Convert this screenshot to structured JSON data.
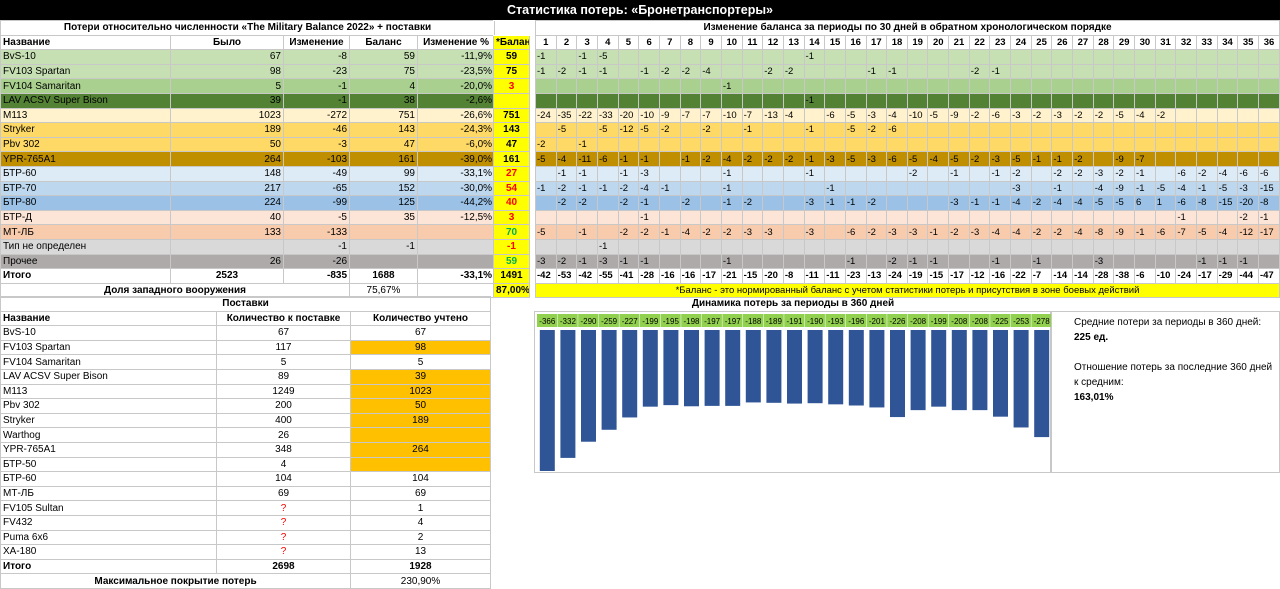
{
  "title": "Статистика потерь: «Бронетранспортеры»",
  "loss_table": {
    "section_title": "Потери относительно численности «The Military Balance 2022» + поставки",
    "headers": [
      "Название",
      "Было",
      "Изменение",
      "Баланс",
      "Изменение %"
    ],
    "rows": [
      {
        "name": "BvS-10",
        "was": "67",
        "change": "-8",
        "balance": "59",
        "pct": "-11,9%",
        "bal_norm": "59"
      },
      {
        "name": "FV103 Spartan",
        "was": "98",
        "change": "-23",
        "balance": "75",
        "pct": "-23,5%",
        "bal_norm": "75"
      },
      {
        "name": "FV104 Samaritan",
        "was": "5",
        "change": "-1",
        "balance": "4",
        "pct": "-20,0%",
        "bal_norm": "3"
      },
      {
        "name": "LAV ACSV Super Bison",
        "was": "39",
        "change": "-1",
        "balance": "38",
        "pct": "-2,6%",
        "bal_norm": ""
      },
      {
        "name": "M113",
        "was": "1023",
        "change": "-272",
        "balance": "751",
        "pct": "-26,6%",
        "bal_norm": "751"
      },
      {
        "name": "Stryker",
        "was": "189",
        "change": "-46",
        "balance": "143",
        "pct": "-24,3%",
        "bal_norm": "143"
      },
      {
        "name": "Pbv 302",
        "was": "50",
        "change": "-3",
        "balance": "47",
        "pct": "-6,0%",
        "bal_norm": "47"
      },
      {
        "name": "YPR-765A1",
        "was": "264",
        "change": "-103",
        "balance": "161",
        "pct": "-39,0%",
        "bal_norm": "161"
      },
      {
        "name": "БТР-60",
        "was": "148",
        "change": "-49",
        "balance": "99",
        "pct": "-33,1%",
        "bal_norm": "27"
      },
      {
        "name": "БТР-70",
        "was": "217",
        "change": "-65",
        "balance": "152",
        "pct": "-30,0%",
        "bal_norm": "54"
      },
      {
        "name": "БТР-80",
        "was": "224",
        "change": "-99",
        "balance": "125",
        "pct": "-44,2%",
        "bal_norm": "40"
      },
      {
        "name": "БТР-Д",
        "was": "40",
        "change": "-5",
        "balance": "35",
        "pct": "-12,5%",
        "bal_norm": "3"
      },
      {
        "name": "МТ-ЛБ",
        "was": "133",
        "change": "-133",
        "balance": "",
        "pct": "",
        "bal_norm": "70"
      },
      {
        "name": "Тип не определен",
        "was": "",
        "change": "-1",
        "balance": "-1",
        "pct": "",
        "bal_norm": "-1"
      },
      {
        "name": "Прочее",
        "was": "26",
        "change": "-26",
        "balance": "",
        "pct": "",
        "bal_norm": "59"
      },
      {
        "name": "Итого",
        "was": "2523",
        "change": "-835",
        "balance": "1688",
        "pct": "-33,1%",
        "bal_norm": "1491"
      }
    ],
    "western_label": "Доля западного вооружения",
    "western_value": "75,67%",
    "western_norm": "87,00%"
  },
  "balance_header": "*Баланс",
  "periods": {
    "title": "Изменение баланса за периоды по 30 дней в обратном хронологическом порядке",
    "columns": [
      "1",
      "2",
      "3",
      "4",
      "5",
      "6",
      "7",
      "8",
      "9",
      "10",
      "11",
      "12",
      "13",
      "14",
      "15",
      "16",
      "17",
      "18",
      "19",
      "20",
      "21",
      "22",
      "23",
      "24",
      "25",
      "26",
      "27",
      "28",
      "29",
      "30",
      "31",
      "32",
      "33",
      "34",
      "35",
      "36"
    ],
    "rows": [
      [
        "-1",
        "",
        "-1",
        "-5",
        "",
        "",
        "",
        "",
        "",
        "",
        "",
        "",
        "",
        "-1",
        "",
        "",
        "",
        "",
        "",
        "",
        "",
        "",
        "",
        "",
        "",
        "",
        "",
        "",
        "",
        "",
        "",
        "",
        "",
        "",
        "",
        ""
      ],
      [
        "-1",
        "-2",
        "-1",
        "-1",
        "",
        "-1",
        "-2",
        "-2",
        "-4",
        "",
        "",
        "-2",
        "-2",
        "",
        "",
        "",
        "-1",
        "-1",
        "",
        "",
        "",
        "-2",
        "-1",
        "",
        "",
        "",
        "",
        "",
        "",
        "",
        "",
        "",
        "",
        "",
        "",
        ""
      ],
      [
        "",
        "",
        "",
        "",
        "",
        "",
        "",
        "",
        "",
        "-1",
        "",
        "",
        "",
        "",
        "",
        "",
        "",
        "",
        "",
        "",
        "",
        "",
        "",
        "",
        "",
        "",
        "",
        "",
        "",
        "",
        "",
        "",
        "",
        "",
        "",
        ""
      ],
      [
        "",
        "",
        "",
        "",
        "",
        "",
        "",
        "",
        "",
        "",
        "",
        "",
        "",
        "-1",
        "",
        "",
        "",
        "",
        "",
        "",
        "",
        "",
        "",
        "",
        "",
        "",
        "",
        "",
        "",
        "",
        "",
        "",
        "",
        "",
        "",
        ""
      ],
      [
        "-24",
        "-35",
        "-22",
        "-33",
        "-20",
        "-10",
        "-9",
        "-7",
        "-7",
        "-10",
        "-7",
        "-13",
        "-4",
        "",
        "-6",
        "-5",
        "-3",
        "-4",
        "-10",
        "-5",
        "-9",
        "-2",
        "-6",
        "-3",
        "-2",
        "-3",
        "-2",
        "-2",
        "-5",
        "-4",
        "-2",
        "",
        "",
        "",
        "",
        ""
      ],
      [
        "",
        "-5",
        "",
        "-5",
        "-12",
        "-5",
        "-2",
        "",
        "-2",
        "",
        "-1",
        "",
        "",
        "-1",
        "",
        "-5",
        "-2",
        "-6",
        "",
        "",
        "",
        "",
        "",
        "",
        "",
        "",
        "",
        "",
        "",
        "",
        "",
        "",
        "",
        "",
        "",
        ""
      ],
      [
        "-2",
        "",
        "-1",
        "",
        "",
        "",
        "",
        "",
        "",
        "",
        "",
        "",
        "",
        "",
        "",
        "",
        "",
        "",
        "",
        "",
        "",
        "",
        "",
        "",
        "",
        "",
        "",
        "",
        "",
        "",
        "",
        "",
        "",
        "",
        "",
        ""
      ],
      [
        "-5",
        "-4",
        "-11",
        "-6",
        "-1",
        "-1",
        "",
        "-1",
        "-2",
        "-4",
        "-2",
        "-2",
        "-2",
        "-1",
        "-3",
        "-5",
        "-3",
        "-6",
        "-5",
        "-4",
        "-5",
        "-2",
        "-3",
        "-5",
        "-1",
        "-1",
        "-2",
        "",
        "-9",
        "-7",
        "",
        "",
        "",
        "",
        "",
        ""
      ],
      [
        "",
        "-1",
        "-1",
        "",
        "-1",
        "-3",
        "",
        "",
        "",
        "-1",
        "",
        "",
        "",
        "-1",
        "",
        "",
        "",
        "",
        "-2",
        "",
        "-1",
        "",
        "-1",
        "-2",
        "",
        "-2",
        "-2",
        "-3",
        "-2",
        "-1",
        "",
        "-6",
        "-2",
        "-4",
        "-6",
        "-6"
      ],
      [
        "-1",
        "-2",
        "-1",
        "-1",
        "-2",
        "-4",
        "-1",
        "",
        "",
        "-1",
        "",
        "",
        "",
        "",
        "-1",
        "",
        "",
        "",
        "",
        "",
        "",
        "",
        "",
        "-3",
        "",
        "-1",
        "",
        "-4",
        "-9",
        "-1",
        "-5",
        "-4",
        "-1",
        "-5",
        "-3",
        "-15"
      ],
      [
        "",
        "-2",
        "-2",
        "",
        "-2",
        "-1",
        "",
        "-2",
        "",
        "-1",
        "-2",
        "",
        "",
        "-3",
        "-1",
        "-1",
        "-2",
        "",
        "",
        "",
        "-3",
        "-1",
        "-1",
        "-4",
        "-2",
        "-4",
        "-4",
        "-5",
        "-5",
        "6",
        "1",
        "-6",
        "-8",
        "-15",
        "-20",
        "-8"
      ],
      [
        "",
        "",
        "",
        "",
        "",
        "-1",
        "",
        "",
        "",
        "",
        "",
        "",
        "",
        "",
        "",
        "",
        "",
        "",
        "",
        "",
        "",
        "",
        "",
        "",
        "",
        "",
        "",
        "",
        "",
        "",
        "",
        "-1",
        "",
        "",
        "-2",
        "-1"
      ],
      [
        "-5",
        "",
        "-1",
        "",
        "-2",
        "-2",
        "-1",
        "-4",
        "-2",
        "-2",
        "-3",
        "-3",
        "",
        "-3",
        "",
        "-6",
        "-2",
        "-3",
        "-3",
        "-1",
        "-2",
        "-3",
        "-4",
        "-4",
        "-2",
        "-2",
        "-4",
        "-8",
        "-9",
        "-1",
        "-6",
        "-7",
        "-5",
        "-4",
        "-12",
        "-17"
      ],
      [
        "",
        "",
        "",
        "-1",
        "",
        "",
        "",
        "",
        "",
        "",
        "",
        "",
        "",
        "",
        "",
        "",
        "",
        "",
        "",
        "",
        "",
        "",
        "",
        "",
        "",
        "",
        "",
        "",
        "",
        "",
        "",
        "",
        "",
        "",
        "",
        ""
      ],
      [
        "-3",
        "-2",
        "-1",
        "-3",
        "-1",
        "-1",
        "",
        "",
        "",
        "-1",
        "",
        "",
        "",
        "",
        "",
        "-1",
        "",
        "-2",
        "-1",
        "-1",
        "",
        "",
        "-1",
        "",
        "-1",
        "",
        "",
        "-3",
        "",
        "",
        "",
        "",
        "-1",
        "-1",
        "-1",
        ""
      ],
      [
        "-42",
        "-53",
        "-42",
        "-55",
        "-41",
        "-28",
        "-16",
        "-16",
        "-17",
        "-21",
        "-15",
        "-20",
        "-8",
        "-11",
        "-11",
        "-23",
        "-13",
        "-24",
        "-19",
        "-15",
        "-17",
        "-12",
        "-16",
        "-22",
        "-7",
        "-14",
        "-14",
        "-28",
        "-38",
        "-6",
        "-10",
        "-24",
        "-17",
        "-29",
        "-44",
        "-47"
      ]
    ],
    "footnote": "*Баланс - это нормированный баланс с учетом статистики потерь и присутствия в зоне боевых действий"
  },
  "supply_table": {
    "section_title": "Поставки",
    "headers": [
      "Название",
      "Количество к поставке",
      "Количество учтено"
    ],
    "rows": [
      {
        "name": "BvS-10",
        "qty": "67",
        "counted": "67"
      },
      {
        "name": "FV103 Spartan",
        "qty": "117",
        "counted": "98"
      },
      {
        "name": "FV104 Samaritan",
        "qty": "5",
        "counted": "5"
      },
      {
        "name": "LAV ACSV Super Bison",
        "qty": "89",
        "counted": "39"
      },
      {
        "name": "M113",
        "qty": "1249",
        "counted": "1023"
      },
      {
        "name": "Pbv 302",
        "qty": "200",
        "counted": "50"
      },
      {
        "name": "Stryker",
        "qty": "400",
        "counted": "189"
      },
      {
        "name": "Warthog",
        "qty": "26",
        "counted": ""
      },
      {
        "name": "YPR-765A1",
        "qty": "348",
        "counted": "264"
      },
      {
        "name": "БТР-50",
        "qty": "4",
        "counted": ""
      },
      {
        "name": "БТР-60",
        "qty": "104",
        "counted": "104"
      },
      {
        "name": "МТ-ЛБ",
        "qty": "69",
        "counted": "69"
      },
      {
        "name": "FV105 Sultan",
        "qty": "?",
        "counted": "1"
      },
      {
        "name": "FV432",
        "qty": "?",
        "counted": "4"
      },
      {
        "name": "Puma 6x6",
        "qty": "?",
        "counted": "2"
      },
      {
        "name": "XA-180",
        "qty": "?",
        "counted": "13"
      },
      {
        "name": "Итого",
        "qty": "2698",
        "counted": "1928"
      }
    ],
    "coverage_label": "Максимальное покрытие потерь",
    "coverage_value": "230,90%"
  },
  "dynamics": {
    "title": "Динамика потерь за периоды в 360 дней",
    "stats": {
      "avg_label": "Средние потери за периоды в 360 дней:",
      "avg_value": "225 ед.",
      "ratio_label": "Отношение потерь за последние 360 дней к средним:",
      "ratio_value": "163,01%"
    }
  },
  "chart_data": {
    "type": "bar",
    "title": "Динамика потерь за периоды в 360 дней",
    "categories": [
      "1",
      "2",
      "3",
      "4",
      "5",
      "6",
      "7",
      "8",
      "9",
      "10",
      "11",
      "12",
      "13",
      "14",
      "15",
      "16",
      "17",
      "18",
      "19",
      "20",
      "21",
      "22",
      "23",
      "24",
      "25"
    ],
    "values": [
      -366,
      -332,
      -290,
      -259,
      -227,
      -199,
      -195,
      -198,
      -197,
      -197,
      -188,
      -189,
      -191,
      -190,
      -193,
      -196,
      -201,
      -226,
      -208,
      -199,
      -208,
      -208,
      -225,
      -253,
      -278
    ],
    "color": "#2f5597",
    "label_bg": "#92d050"
  },
  "colors": {
    "green_light": "#c6e0b4",
    "green_mid": "#a9d08e",
    "green_dark": "#548235",
    "yellow_light": "#fff2cc",
    "yellow_mid": "#ffd966",
    "gold": "#bf8f00",
    "blue_light": "#ddebf7",
    "blue_mid": "#bdd7ee",
    "blue_dark": "#9bc2e6",
    "salmon_light": "#fce4d6",
    "salmon": "#f8cbad",
    "gray": "#d9d9d9",
    "gray_dark": "#aeaaaa",
    "yellow": "#ffff00",
    "orange": "#ffc000"
  }
}
